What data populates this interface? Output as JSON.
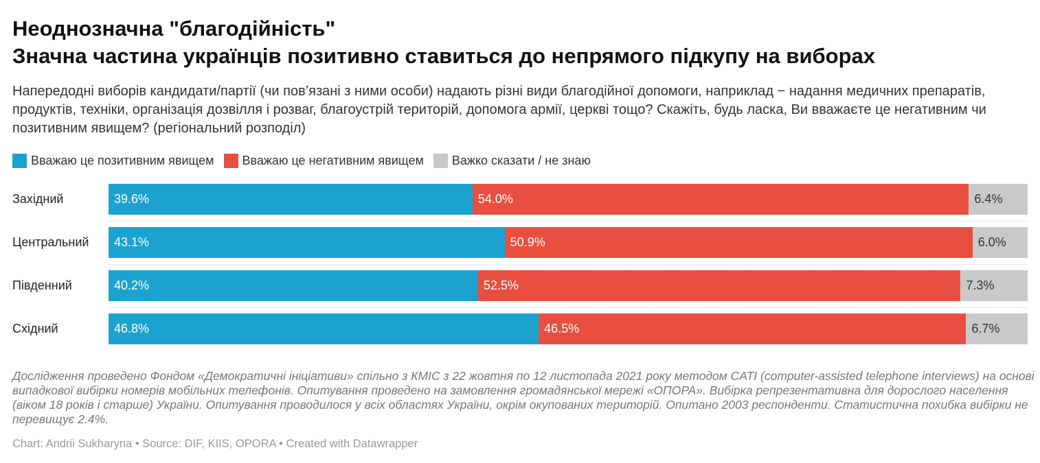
{
  "title_line1": "Неоднозначна \"благодійність\"",
  "title_line2": "Значна частина українців позитивно ставиться до непрямого підкупу на виборах",
  "description": "Напередодні виборів кандидати/партії (чи пов’язані з ними особи) надають різні види благодійної допомоги, наприклад − надання медичних препаратів, продуктів, техніки, організація дозвілля і розваг, благоустрій територій, допомога армії, церкві тощо? Скажіть, будь ласка, Ви вважаєте це негативним чи позитивним явищем? (регіональний розподіл)",
  "chart_data": {
    "type": "bar",
    "stacked": true,
    "orientation": "horizontal",
    "categories": [
      "Західний",
      "Центральний",
      "Південний",
      "Східний"
    ],
    "series": [
      {
        "name": "Вважаю це позитивним явищем",
        "color": "#1ba2cf",
        "text_color": "#ffffff",
        "values": [
          39.6,
          43.1,
          40.2,
          46.8
        ],
        "labels": [
          "39.6%",
          "43.1%",
          "40.2%",
          "46.8%"
        ]
      },
      {
        "name": "Вважаю це негативним явищем",
        "color": "#e84f40",
        "text_color": "#ffffff",
        "values": [
          54.0,
          50.9,
          52.5,
          46.5
        ],
        "labels": [
          "54.0%",
          "50.9%",
          "52.5%",
          "46.5%"
        ]
      },
      {
        "name": "Важко сказати / не знаю",
        "color": "#c9c9c9",
        "text_color": "#333333",
        "values": [
          6.4,
          6.0,
          7.3,
          6.7
        ],
        "labels": [
          "6.4%",
          "6.0%",
          "7.3%",
          "6.7%"
        ]
      }
    ],
    "legend_position": "top-left"
  },
  "notes": "Дослідження проведено Фондом «Демократичні ініціативи» спільно з КМІС з 22 жовтня по 12 листопада 2021 року методом CATI (computer-assisted telephone interviews) на основі випадкової вибірки номерів мобільних телефонів. Опитування проведено на замовлення громадянської мережі «ОПОРА». Вибірка репрезентативна для дорослого населення (віком 18 років і старше) України. Опитування проводилося у всіх областях України, окрім окупованих територій. Опитано 2003 респонденти. Статистична похибка вибірки не перевищує 2.4%.",
  "credit": "Chart: Andrii Sukharyna • Source: DIF, KIIS, OPORA • Created with Datawrapper"
}
